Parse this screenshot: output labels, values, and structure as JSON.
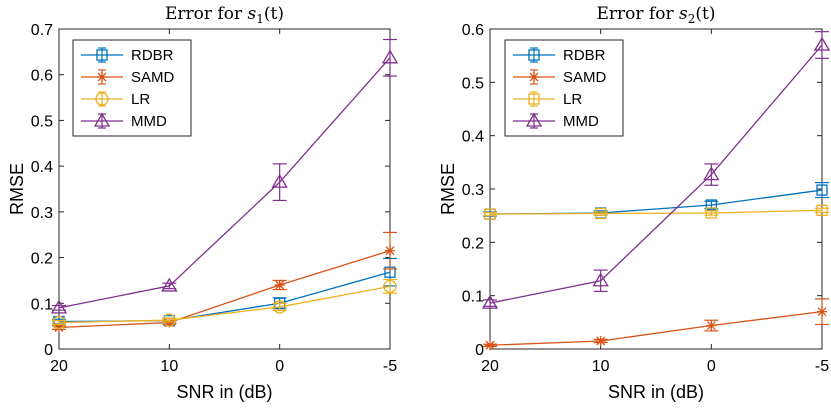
{
  "chart_data": [
    {
      "type": "line",
      "title_prefix": "Error for ",
      "title_var": "s",
      "title_sub": "1",
      "title_arg": "(t)",
      "xlabel": "SNR in (dB)",
      "ylabel": "RMSE",
      "categories": [
        "20",
        "10",
        "0",
        "-5"
      ],
      "ylim": [
        0,
        0.7
      ],
      "yticks": [
        "0",
        "0.1",
        "0.2",
        "0.3",
        "0.4",
        "0.5",
        "0.6",
        "0.7"
      ],
      "legend_position": "top-left",
      "series": [
        {
          "name": "RDBR",
          "color": "#0072BD",
          "marker": "square",
          "values": [
            0.06,
            0.062,
            0.1,
            0.168
          ],
          "errors": [
            0.005,
            0.005,
            0.012,
            0.03
          ]
        },
        {
          "name": "SAMD",
          "color": "#D95319",
          "marker": "star",
          "values": [
            0.047,
            0.058,
            0.14,
            0.215
          ],
          "errors": [
            0.004,
            0.004,
            0.01,
            0.04
          ]
        },
        {
          "name": "LR",
          "color": "#EDB120",
          "marker": "circle",
          "values": [
            0.058,
            0.063,
            0.092,
            0.137
          ],
          "errors": [
            0.004,
            0.004,
            0.008,
            0.015
          ]
        },
        {
          "name": "MMD",
          "color": "#7E2F8E",
          "marker": "triangle",
          "values": [
            0.09,
            0.138,
            0.365,
            0.637
          ],
          "errors": [
            0.005,
            0.006,
            0.04,
            0.04
          ]
        }
      ]
    },
    {
      "type": "line",
      "title_prefix": "Error for ",
      "title_var": "s",
      "title_sub": "2",
      "title_arg": "(t)",
      "xlabel": "SNR in (dB)",
      "ylabel": "RMSE",
      "categories": [
        "20",
        "10",
        "0",
        "-5"
      ],
      "ylim": [
        0,
        0.6
      ],
      "yticks": [
        "0",
        "0.1",
        "0.2",
        "0.3",
        "0.4",
        "0.5",
        "0.6"
      ],
      "legend_position": "top-left",
      "series": [
        {
          "name": "RDBR",
          "color": "#0072BD",
          "marker": "square",
          "values": [
            0.253,
            0.255,
            0.27,
            0.298
          ],
          "errors": [
            0.004,
            0.004,
            0.007,
            0.014
          ]
        },
        {
          "name": "SAMD",
          "color": "#D95319",
          "marker": "star",
          "values": [
            0.007,
            0.015,
            0.044,
            0.07
          ],
          "errors": [
            0.002,
            0.003,
            0.01,
            0.024
          ]
        },
        {
          "name": "LR",
          "color": "#EDB120",
          "marker": "square",
          "values": [
            0.253,
            0.254,
            0.255,
            0.26
          ],
          "errors": [
            0.003,
            0.003,
            0.004,
            0.004
          ]
        },
        {
          "name": "MMD",
          "color": "#7E2F8E",
          "marker": "triangle",
          "values": [
            0.086,
            0.128,
            0.327,
            0.57
          ],
          "errors": [
            0.006,
            0.02,
            0.02,
            0.025
          ]
        }
      ]
    }
  ]
}
